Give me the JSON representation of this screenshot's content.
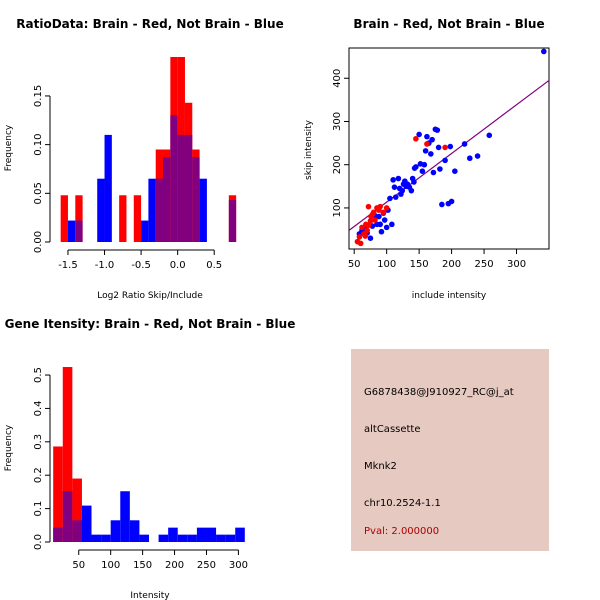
{
  "colors": {
    "brain": "#ff0000",
    "not_brain": "#0000ff",
    "overlap": "#800080",
    "fit_line": "#800080"
  },
  "chart_data": [
    {
      "id": "ratio",
      "type": "bar",
      "title": "RatioData: Brain - Red, Not Brain - Blue",
      "xlabel": "Log2 Ratio Skip/Include",
      "ylabel": "Frequency",
      "xlim": [
        -1.65,
        0.88
      ],
      "ylim": [
        0,
        0.19
      ],
      "xticks": [
        {
          "v": -1.5,
          "label": "-1.5"
        },
        {
          "v": -1.0,
          "label": "-1.0"
        },
        {
          "v": -0.5,
          "label": "-0.5"
        },
        {
          "v": 0.0,
          "label": "0.0"
        },
        {
          "v": 0.5,
          "label": "0.5"
        }
      ],
      "yticks": [
        {
          "v": 0.0,
          "label": "0.00"
        },
        {
          "v": 0.05,
          "label": "0.05"
        },
        {
          "v": 0.1,
          "label": "0.10"
        },
        {
          "v": 0.15,
          "label": "0.15"
        }
      ],
      "bin_edges": [
        -1.6,
        -1.5,
        -1.4,
        -1.3,
        -1.2,
        -1.1,
        -1.0,
        -0.9,
        -0.8,
        -0.7,
        -0.6,
        -0.5,
        -0.4,
        -0.3,
        -0.2,
        -0.1,
        0.0,
        0.1,
        0.2,
        0.3,
        0.4,
        0.5,
        0.6,
        0.7,
        0.8,
        0.85
      ],
      "series": [
        {
          "name": "Brain",
          "color": "red",
          "values": [
            0.048,
            0.0,
            0.048,
            0.0,
            0.0,
            0.0,
            0.0,
            0.0,
            0.048,
            0.0,
            0.048,
            0.0,
            0.0,
            0.095,
            0.095,
            0.19,
            0.19,
            0.143,
            0.095,
            0.0,
            0.0,
            0.0,
            0.0,
            0.048,
            0.0
          ]
        },
        {
          "name": "Not Brain",
          "color": "blue",
          "values": [
            0.0,
            0.022,
            0.022,
            0.0,
            0.0,
            0.065,
            0.11,
            0.0,
            0.0,
            0.0,
            0.0,
            0.022,
            0.065,
            0.065,
            0.087,
            0.13,
            0.11,
            0.11,
            0.087,
            0.065,
            0.0,
            0.0,
            0.0,
            0.043,
            0.0
          ]
        }
      ]
    },
    {
      "id": "scatter",
      "type": "scatter",
      "title": "Brain - Red, Not Brain - Blue",
      "xlabel": "include intensity",
      "ylabel": "skip intensity",
      "xlim": [
        42,
        350
      ],
      "ylim": [
        5,
        470
      ],
      "xticks": [
        50,
        100,
        150,
        200,
        250,
        300
      ],
      "yticks": [
        100,
        200,
        300,
        400
      ],
      "fit_line": [
        [
          42,
          48
        ],
        [
          350,
          395
        ]
      ],
      "series": [
        {
          "name": "Brain",
          "color": "red",
          "points": [
            [
              55,
              22
            ],
            [
              58,
              33
            ],
            [
              60,
              18
            ],
            [
              62,
              55
            ],
            [
              65,
              40
            ],
            [
              67,
              35
            ],
            [
              68,
              62
            ],
            [
              70,
              48
            ],
            [
              72,
              60
            ],
            [
              72,
              103
            ],
            [
              75,
              70
            ],
            [
              76,
              80
            ],
            [
              78,
              85
            ],
            [
              80,
              90
            ],
            [
              82,
              72
            ],
            [
              85,
              100
            ],
            [
              88,
              95
            ],
            [
              90,
              103
            ],
            [
              95,
              90
            ],
            [
              100,
              100
            ],
            [
              145,
              260
            ],
            [
              162,
              248
            ],
            [
              190,
              240
            ]
          ]
        },
        {
          "name": "Not Brain",
          "color": "blue",
          "points": [
            [
              58,
              40
            ],
            [
              62,
              48
            ],
            [
              66,
              52
            ],
            [
              70,
              42
            ],
            [
              75,
              30
            ],
            [
              78,
              58
            ],
            [
              82,
              82
            ],
            [
              85,
              62
            ],
            [
              88,
              80
            ],
            [
              90,
              62
            ],
            [
              92,
              45
            ],
            [
              95,
              88
            ],
            [
              97,
              72
            ],
            [
              100,
              55
            ],
            [
              102,
              95
            ],
            [
              105,
              122
            ],
            [
              108,
              62
            ],
            [
              110,
              165
            ],
            [
              112,
              148
            ],
            [
              114,
              125
            ],
            [
              118,
              168
            ],
            [
              120,
              145
            ],
            [
              122,
              132
            ],
            [
              124,
              140
            ],
            [
              126,
              155
            ],
            [
              128,
              162
            ],
            [
              130,
              150
            ],
            [
              132,
              155
            ],
            [
              135,
              148
            ],
            [
              138,
              140
            ],
            [
              140,
              168
            ],
            [
              142,
              160
            ],
            [
              143,
              192
            ],
            [
              145,
              195
            ],
            [
              150,
              270
            ],
            [
              152,
              202
            ],
            [
              155,
              185
            ],
            [
              158,
              200
            ],
            [
              160,
              232
            ],
            [
              162,
              265
            ],
            [
              165,
              250
            ],
            [
              168,
              225
            ],
            [
              170,
              258
            ],
            [
              172,
              182
            ],
            [
              175,
              282
            ],
            [
              178,
              280
            ],
            [
              180,
              240
            ],
            [
              182,
              190
            ],
            [
              185,
              108
            ],
            [
              190,
              210
            ],
            [
              195,
              110
            ],
            [
              198,
              242
            ],
            [
              200,
              115
            ],
            [
              205,
              185
            ],
            [
              220,
              248
            ],
            [
              228,
              215
            ],
            [
              240,
              220
            ],
            [
              258,
              268
            ],
            [
              342,
              462
            ]
          ]
        }
      ]
    },
    {
      "id": "intensity",
      "type": "bar",
      "title": "Gene Itensity: Brain - Red, Not Brain - Blue",
      "xlabel": "Intensity",
      "ylabel": "Frequency",
      "xlim": [
        5,
        315
      ],
      "ylim": [
        0,
        0.56
      ],
      "xticks": [
        {
          "v": 50,
          "label": "50"
        },
        {
          "v": 100,
          "label": "100"
        },
        {
          "v": 150,
          "label": "150"
        },
        {
          "v": 200,
          "label": "200"
        },
        {
          "v": 250,
          "label": "250"
        },
        {
          "v": 300,
          "label": "300"
        }
      ],
      "yticks": [
        {
          "v": 0.0,
          "label": "0.0"
        },
        {
          "v": 0.1,
          "label": "0.1"
        },
        {
          "v": 0.2,
          "label": "0.2"
        },
        {
          "v": 0.3,
          "label": "0.3"
        },
        {
          "v": 0.4,
          "label": "0.4"
        },
        {
          "v": 0.5,
          "label": "0.5"
        }
      ],
      "bin_edges": [
        10,
        25,
        40,
        55,
        70,
        85,
        100,
        115,
        130,
        145,
        160,
        175,
        190,
        205,
        220,
        235,
        250,
        265,
        280,
        295,
        310
      ],
      "series": [
        {
          "name": "Brain",
          "color": "red",
          "values": [
            0.286,
            0.524,
            0.19,
            0.0,
            0.0,
            0.0,
            0.0,
            0.0,
            0.0,
            0.0,
            0.0,
            0.0,
            0.0,
            0.0,
            0.0,
            0.0,
            0.0,
            0.0,
            0.0,
            0.0
          ]
        },
        {
          "name": "Not Brain",
          "color": "blue",
          "values": [
            0.043,
            0.152,
            0.065,
            0.109,
            0.022,
            0.022,
            0.065,
            0.152,
            0.065,
            0.022,
            0.0,
            0.022,
            0.043,
            0.022,
            0.022,
            0.043,
            0.043,
            0.022,
            0.022,
            0.043
          ]
        }
      ]
    }
  ],
  "info": {
    "probe_id": "G6878438@J910927_RC@j_at",
    "event_type": "altCassette",
    "gene": "Mknk2",
    "location": "chr10.2524-1.1",
    "pval": "Pval: 2.000000"
  }
}
